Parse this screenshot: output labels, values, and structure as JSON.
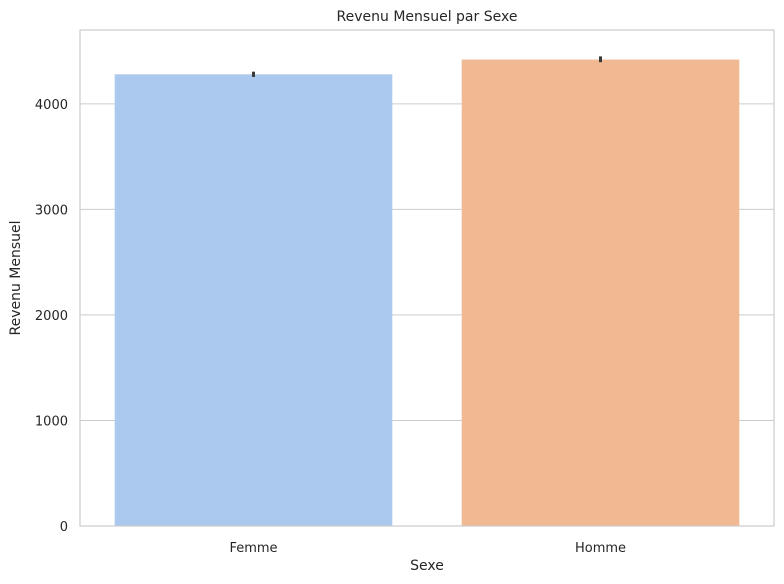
{
  "chart_data": {
    "type": "bar",
    "title": "Revenu Mensuel par Sexe",
    "xlabel": "Sexe",
    "ylabel": "Revenu Mensuel",
    "categories": [
      "Femme",
      "Homme"
    ],
    "values": [
      4280,
      4420
    ],
    "error_bars": [
      [
        4255,
        4305
      ],
      [
        4395,
        4450
      ]
    ],
    "colors": [
      "#abc9ee",
      "#f0b992"
    ],
    "ylim": [
      0,
      4700
    ],
    "yticks": [
      0,
      1000,
      2000,
      3000,
      4000
    ],
    "ytick_labels": [
      "0",
      "1000",
      "2000",
      "3000",
      "4000"
    ],
    "grid": "horizontal",
    "legend": "none"
  }
}
